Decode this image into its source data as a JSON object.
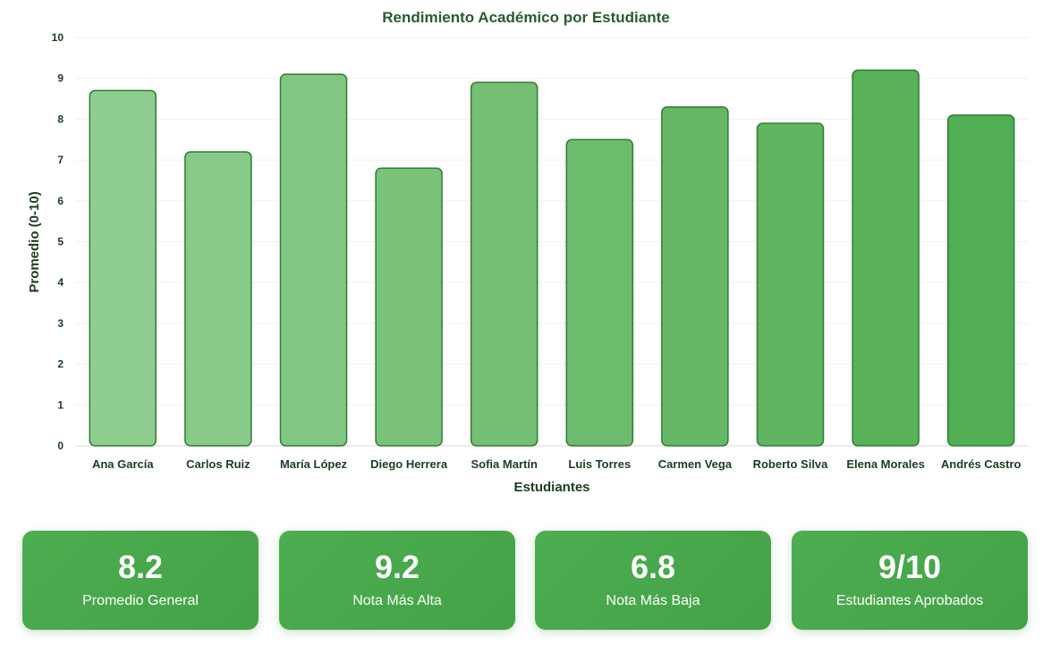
{
  "chart_data": {
    "type": "bar",
    "title": "Rendimiento Académico por Estudiante",
    "xlabel": "Estudiantes",
    "ylabel": "Promedio (0-10)",
    "ylim": [
      0,
      10
    ],
    "yticks": [
      "0",
      "1",
      "2",
      "3",
      "4",
      "5",
      "6",
      "7",
      "8",
      "9",
      "10"
    ],
    "grid": true,
    "categories": [
      "Ana García",
      "Carlos Ruiz",
      "María López",
      "Diego Herrera",
      "Sofia Martín",
      "Luis Torres",
      "Carmen Vega",
      "Roberto Silva",
      "Elena Morales",
      "Andrés Castro"
    ],
    "values": [
      8.7,
      7.2,
      9.1,
      6.8,
      8.9,
      7.5,
      8.3,
      7.9,
      9.2,
      8.1
    ],
    "colors": {
      "bar_start": "#8fcd8f",
      "bar_end": "#52ae53",
      "bar_stroke": "#2e7d32",
      "title": "#2a5a2e",
      "axis_text": "#1b3d20"
    }
  },
  "stats": [
    {
      "value": "8.2",
      "label": "Promedio General"
    },
    {
      "value": "9.2",
      "label": "Nota Más Alta"
    },
    {
      "value": "6.8",
      "label": "Nota Más Baja"
    },
    {
      "value": "9/10",
      "label": "Estudiantes Aprobados"
    }
  ]
}
